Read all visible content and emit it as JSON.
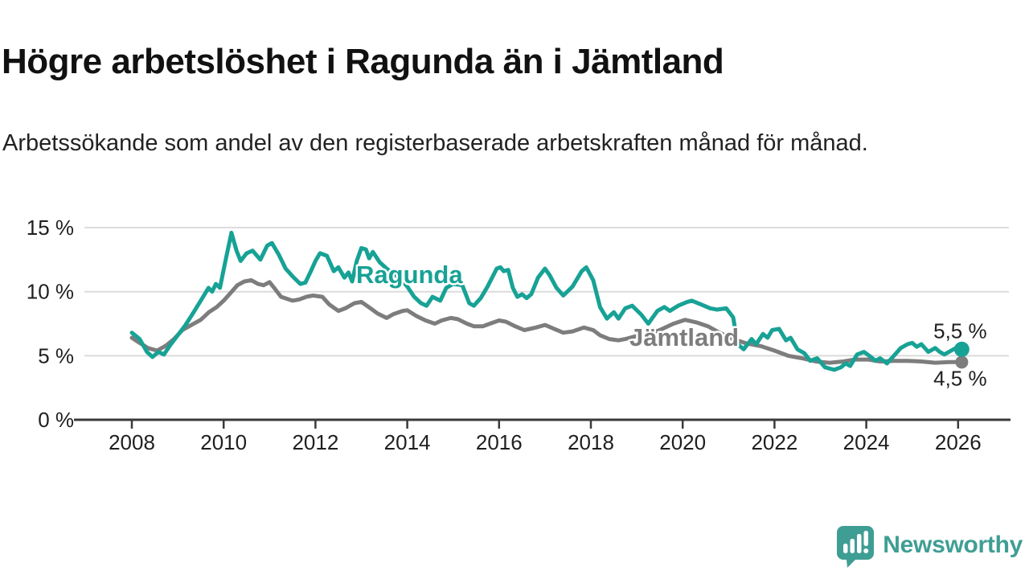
{
  "header": {
    "title": "Högre arbetslöshet i Ragunda än i Jämtland",
    "subtitle": "Arbetssökande som andel av den registerbaserade arbetskraften månad för månad."
  },
  "branding": {
    "logo_text": "Newsworthy",
    "logo_color": "#3f9e94"
  },
  "chart_data": {
    "type": "line",
    "title": "Högre arbetslöshet i Ragunda än i Jämtland",
    "subtitle": "Arbetssökande som andel av den registerbaserade arbetskraften månad för månad.",
    "xlabel": "",
    "ylabel": "",
    "unit": "%",
    "grid": "horizontal",
    "legend_position": "inline-labels",
    "ylim": [
      0,
      15.6
    ],
    "xlim": [
      2007.0,
      2027.1
    ],
    "y_ticks": [
      {
        "value": 15,
        "label": "15 %"
      },
      {
        "value": 10,
        "label": "10 %"
      },
      {
        "value": 5,
        "label": "5 %"
      },
      {
        "value": 0,
        "label": "0 %"
      }
    ],
    "x_ticks": [
      {
        "value": 2008,
        "label": "2008"
      },
      {
        "value": 2010,
        "label": "2010"
      },
      {
        "value": 2012,
        "label": "2012"
      },
      {
        "value": 2014,
        "label": "2014"
      },
      {
        "value": 2016,
        "label": "2016"
      },
      {
        "value": 2018,
        "label": "2018"
      },
      {
        "value": 2020,
        "label": "2020"
      },
      {
        "value": 2022,
        "label": "2022"
      },
      {
        "value": 2024,
        "label": "2024"
      },
      {
        "value": 2026,
        "label": "2026"
      }
    ],
    "colors": {
      "ragunda": "#17a295",
      "jamtland": "#7d7d7d",
      "grid": "#dcdcdc",
      "axis": "#3a3a3a",
      "text": "#1f1f1f"
    },
    "series": [
      {
        "name": "Jämtland",
        "color": "#7d7d7d",
        "end_label": "4,5 %",
        "end_value": 4.5,
        "inline_label_pos": {
          "x": 783,
          "y": 430
        },
        "points": [
          [
            2008.0,
            6.4
          ],
          [
            2008.17,
            6.0
          ],
          [
            2008.35,
            5.6
          ],
          [
            2008.55,
            5.4
          ],
          [
            2008.75,
            5.8
          ],
          [
            2008.92,
            6.3
          ],
          [
            2009.1,
            7.0
          ],
          [
            2009.3,
            7.4
          ],
          [
            2009.5,
            7.8
          ],
          [
            2009.68,
            8.4
          ],
          [
            2009.85,
            8.8
          ],
          [
            2010.0,
            9.3
          ],
          [
            2010.15,
            9.9
          ],
          [
            2010.3,
            10.5
          ],
          [
            2010.45,
            10.8
          ],
          [
            2010.6,
            10.9
          ],
          [
            2010.75,
            10.6
          ],
          [
            2010.87,
            10.5
          ],
          [
            2011.0,
            10.75
          ],
          [
            2011.1,
            10.3
          ],
          [
            2011.25,
            9.6
          ],
          [
            2011.5,
            9.3
          ],
          [
            2011.65,
            9.4
          ],
          [
            2011.8,
            9.6
          ],
          [
            2011.95,
            9.7
          ],
          [
            2012.15,
            9.6
          ],
          [
            2012.3,
            9.0
          ],
          [
            2012.5,
            8.5
          ],
          [
            2012.65,
            8.7
          ],
          [
            2012.85,
            9.1
          ],
          [
            2013.0,
            9.2
          ],
          [
            2013.2,
            8.7
          ],
          [
            2013.35,
            8.3
          ],
          [
            2013.55,
            7.95
          ],
          [
            2013.7,
            8.25
          ],
          [
            2013.9,
            8.5
          ],
          [
            2014.0,
            8.55
          ],
          [
            2014.2,
            8.1
          ],
          [
            2014.4,
            7.75
          ],
          [
            2014.6,
            7.5
          ],
          [
            2014.75,
            7.75
          ],
          [
            2014.95,
            7.95
          ],
          [
            2015.1,
            7.85
          ],
          [
            2015.3,
            7.5
          ],
          [
            2015.45,
            7.3
          ],
          [
            2015.65,
            7.3
          ],
          [
            2015.8,
            7.5
          ],
          [
            2016.0,
            7.75
          ],
          [
            2016.15,
            7.65
          ],
          [
            2016.35,
            7.3
          ],
          [
            2016.55,
            7.0
          ],
          [
            2016.8,
            7.2
          ],
          [
            2017.0,
            7.4
          ],
          [
            2017.2,
            7.1
          ],
          [
            2017.4,
            6.8
          ],
          [
            2017.6,
            6.9
          ],
          [
            2017.85,
            7.2
          ],
          [
            2018.05,
            7.0
          ],
          [
            2018.2,
            6.6
          ],
          [
            2018.4,
            6.3
          ],
          [
            2018.6,
            6.2
          ],
          [
            2018.75,
            6.3
          ],
          [
            2018.95,
            6.5
          ],
          [
            2019.2,
            6.6
          ],
          [
            2019.5,
            7.0
          ],
          [
            2019.8,
            7.5
          ],
          [
            2020.05,
            7.8
          ],
          [
            2020.3,
            7.6
          ],
          [
            2020.55,
            7.3
          ],
          [
            2020.8,
            6.8
          ],
          [
            2021.1,
            6.3
          ],
          [
            2021.4,
            5.95
          ],
          [
            2021.7,
            5.75
          ],
          [
            2022.0,
            5.4
          ],
          [
            2022.3,
            5.0
          ],
          [
            2022.6,
            4.8
          ],
          [
            2022.9,
            4.55
          ],
          [
            2023.2,
            4.45
          ],
          [
            2023.5,
            4.55
          ],
          [
            2023.75,
            4.7
          ],
          [
            2024.05,
            4.7
          ],
          [
            2024.3,
            4.55
          ],
          [
            2024.6,
            4.6
          ],
          [
            2024.9,
            4.6
          ],
          [
            2025.2,
            4.55
          ],
          [
            2025.5,
            4.45
          ],
          [
            2025.8,
            4.5
          ],
          [
            2026.08,
            4.5
          ]
        ]
      },
      {
        "name": "Ragunda",
        "color": "#17a295",
        "end_label": "5,5 %",
        "end_value": 5.5,
        "inline_label_pos": {
          "x": 443,
          "y": 352
        },
        "points": [
          [
            2008.0,
            6.8
          ],
          [
            2008.17,
            6.3
          ],
          [
            2008.33,
            5.3
          ],
          [
            2008.45,
            4.9
          ],
          [
            2008.58,
            5.3
          ],
          [
            2008.7,
            5.1
          ],
          [
            2008.83,
            5.8
          ],
          [
            2009.0,
            6.6
          ],
          [
            2009.17,
            7.4
          ],
          [
            2009.33,
            8.3
          ],
          [
            2009.5,
            9.3
          ],
          [
            2009.67,
            10.3
          ],
          [
            2009.75,
            10.0
          ],
          [
            2009.83,
            10.6
          ],
          [
            2009.92,
            10.3
          ],
          [
            2010.05,
            12.6
          ],
          [
            2010.17,
            14.6
          ],
          [
            2010.28,
            13.2
          ],
          [
            2010.37,
            12.4
          ],
          [
            2010.5,
            13.0
          ],
          [
            2010.63,
            13.2
          ],
          [
            2010.8,
            12.5
          ],
          [
            2010.95,
            13.6
          ],
          [
            2011.05,
            13.8
          ],
          [
            2011.2,
            12.9
          ],
          [
            2011.35,
            11.8
          ],
          [
            2011.5,
            11.2
          ],
          [
            2011.67,
            10.6
          ],
          [
            2011.78,
            10.7
          ],
          [
            2011.9,
            11.6
          ],
          [
            2012.0,
            12.4
          ],
          [
            2012.1,
            13.0
          ],
          [
            2012.25,
            12.8
          ],
          [
            2012.4,
            11.6
          ],
          [
            2012.5,
            11.9
          ],
          [
            2012.63,
            11.1
          ],
          [
            2012.72,
            11.5
          ],
          [
            2012.8,
            10.8
          ],
          [
            2012.9,
            12.4
          ],
          [
            2013.0,
            13.4
          ],
          [
            2013.1,
            13.3
          ],
          [
            2013.17,
            12.6
          ],
          [
            2013.25,
            13.1
          ],
          [
            2013.4,
            12.3
          ],
          [
            2013.55,
            11.8
          ],
          [
            2013.7,
            11.4
          ],
          [
            2013.85,
            11.0
          ],
          [
            2014.0,
            10.4
          ],
          [
            2014.15,
            9.6
          ],
          [
            2014.3,
            9.1
          ],
          [
            2014.42,
            8.9
          ],
          [
            2014.55,
            9.6
          ],
          [
            2014.72,
            9.3
          ],
          [
            2014.85,
            10.3
          ],
          [
            2015.0,
            10.6
          ],
          [
            2015.2,
            10.5
          ],
          [
            2015.35,
            9.1
          ],
          [
            2015.45,
            8.9
          ],
          [
            2015.6,
            9.5
          ],
          [
            2015.75,
            10.4
          ],
          [
            2015.95,
            11.8
          ],
          [
            2016.03,
            11.9
          ],
          [
            2016.1,
            11.6
          ],
          [
            2016.2,
            11.7
          ],
          [
            2016.3,
            10.3
          ],
          [
            2016.4,
            9.6
          ],
          [
            2016.5,
            9.8
          ],
          [
            2016.6,
            9.5
          ],
          [
            2016.7,
            9.8
          ],
          [
            2016.85,
            11.1
          ],
          [
            2017.0,
            11.8
          ],
          [
            2017.1,
            11.3
          ],
          [
            2017.25,
            10.3
          ],
          [
            2017.4,
            9.7
          ],
          [
            2017.6,
            10.4
          ],
          [
            2017.8,
            11.6
          ],
          [
            2017.9,
            11.9
          ],
          [
            2018.05,
            10.9
          ],
          [
            2018.2,
            8.8
          ],
          [
            2018.35,
            7.9
          ],
          [
            2018.5,
            8.4
          ],
          [
            2018.6,
            7.9
          ],
          [
            2018.75,
            8.7
          ],
          [
            2018.9,
            8.9
          ],
          [
            2019.1,
            8.2
          ],
          [
            2019.25,
            7.5
          ],
          [
            2019.45,
            8.5
          ],
          [
            2019.6,
            8.8
          ],
          [
            2019.72,
            8.5
          ],
          [
            2019.9,
            8.9
          ],
          [
            2020.1,
            9.2
          ],
          [
            2020.2,
            9.3
          ],
          [
            2020.4,
            9.0
          ],
          [
            2020.6,
            8.7
          ],
          [
            2020.75,
            8.6
          ],
          [
            2020.95,
            8.7
          ],
          [
            2021.1,
            8.0
          ],
          [
            2021.2,
            5.9
          ],
          [
            2021.33,
            5.5
          ],
          [
            2021.5,
            6.3
          ],
          [
            2021.6,
            5.9
          ],
          [
            2021.75,
            6.7
          ],
          [
            2021.85,
            6.4
          ],
          [
            2021.95,
            7.0
          ],
          [
            2022.1,
            7.1
          ],
          [
            2022.25,
            6.2
          ],
          [
            2022.35,
            6.4
          ],
          [
            2022.5,
            5.5
          ],
          [
            2022.65,
            5.2
          ],
          [
            2022.78,
            4.6
          ],
          [
            2022.93,
            4.8
          ],
          [
            2023.1,
            4.1
          ],
          [
            2023.3,
            3.9
          ],
          [
            2023.45,
            4.1
          ],
          [
            2023.55,
            4.4
          ],
          [
            2023.65,
            4.2
          ],
          [
            2023.8,
            5.1
          ],
          [
            2023.95,
            5.3
          ],
          [
            2024.1,
            4.9
          ],
          [
            2024.2,
            4.6
          ],
          [
            2024.3,
            4.8
          ],
          [
            2024.45,
            4.4
          ],
          [
            2024.6,
            5.0
          ],
          [
            2024.75,
            5.6
          ],
          [
            2024.9,
            5.9
          ],
          [
            2025.0,
            6.0
          ],
          [
            2025.1,
            5.7
          ],
          [
            2025.2,
            5.9
          ],
          [
            2025.35,
            5.3
          ],
          [
            2025.5,
            5.6
          ],
          [
            2025.6,
            5.3
          ],
          [
            2025.7,
            5.1
          ],
          [
            2025.85,
            5.4
          ],
          [
            2025.95,
            5.6
          ],
          [
            2026.08,
            5.5
          ]
        ]
      }
    ]
  }
}
